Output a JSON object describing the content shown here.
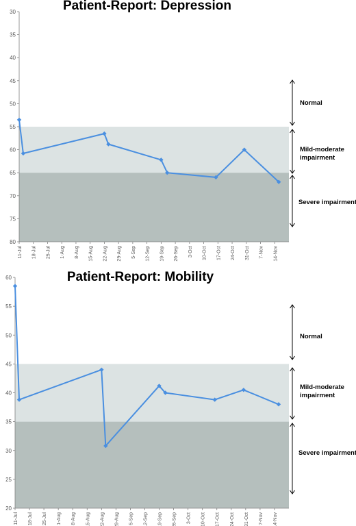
{
  "chart_data": [
    {
      "type": "line",
      "title": "Patient-Report: Depression",
      "y_reversed": true,
      "ylim": [
        30,
        80
      ],
      "yticks": [
        30,
        35,
        40,
        45,
        50,
        55,
        60,
        65,
        70,
        75,
        80
      ],
      "categories": [
        "11-Jul",
        "18-Jul",
        "25-Jul",
        "1-Aug",
        "8-Aug",
        "15-Aug",
        "22-Aug",
        "29-Aug",
        "5-Sep",
        "12-Sep",
        "19-Sep",
        "26-Sep",
        "3-Oct",
        "10-Oct",
        "17-Oct",
        "24-Oct",
        "31-Oct",
        "7-Nov",
        "14-Nov"
      ],
      "series": [
        {
          "color": "#4a8fe0",
          "points": [
            {
              "x": "11-Jul",
              "y": 53.5
            },
            {
              "x": "13-Jul",
              "y": 60.8
            },
            {
              "x": "22-Aug",
              "y": 56.5
            },
            {
              "x": "24-Aug",
              "y": 58.8
            },
            {
              "x": "19-Sep",
              "y": 62.2
            },
            {
              "x": "22-Sep",
              "y": 65.0
            },
            {
              "x": "16-Oct",
              "y": 66.0
            },
            {
              "x": "30-Oct",
              "y": 60.0
            },
            {
              "x": "16-Nov",
              "y": 67.0
            }
          ]
        }
      ],
      "zones": [
        {
          "label": "Normal",
          "from": 30,
          "to": 55,
          "color": "#ffffff"
        },
        {
          "label": "Mild-moderate impairment",
          "from": 55,
          "to": 65,
          "color": "#dce3e3"
        },
        {
          "label": "Severe impairment",
          "from": 65,
          "to": 80,
          "color": "#b5bfbd"
        }
      ],
      "grid": false,
      "legend": "none"
    },
    {
      "type": "line",
      "title": "Patient-Report: Mobility",
      "y_reversed": false,
      "ylim": [
        20,
        60
      ],
      "yticks": [
        20,
        25,
        30,
        35,
        40,
        45,
        50,
        55,
        60
      ],
      "categories": [
        "11-Jul",
        "18-Jul",
        "25-Jul",
        "1-Aug",
        "8-Aug",
        "15-Aug",
        "22-Aug",
        "29-Aug",
        "5-Sep",
        "12-Sep",
        "19-Sep",
        "26-Sep",
        "3-Oct",
        "10-Oct",
        "17-Oct",
        "24-Oct",
        "31-Oct",
        "7-Nov",
        "14-Nov"
      ],
      "series": [
        {
          "color": "#4a8fe0",
          "points": [
            {
              "x": "11-Jul",
              "y": 58.5
            },
            {
              "x": "13-Jul",
              "y": 38.8
            },
            {
              "x": "22-Aug",
              "y": 44.0
            },
            {
              "x": "24-Aug",
              "y": 30.8
            },
            {
              "x": "19-Sep",
              "y": 41.2
            },
            {
              "x": "22-Sep",
              "y": 40.0
            },
            {
              "x": "16-Oct",
              "y": 38.8
            },
            {
              "x": "30-Oct",
              "y": 40.5
            },
            {
              "x": "16-Nov",
              "y": 38.0
            }
          ]
        }
      ],
      "zones": [
        {
          "label": "Normal",
          "from": 45,
          "to": 60,
          "color": "#ffffff"
        },
        {
          "label": "Mild-moderate impairment",
          "from": 35,
          "to": 45,
          "color": "#dce3e3"
        },
        {
          "label": "Severe impairment",
          "from": 20,
          "to": 35,
          "color": "#b5bfbd"
        }
      ],
      "grid": false,
      "legend": "none"
    }
  ]
}
